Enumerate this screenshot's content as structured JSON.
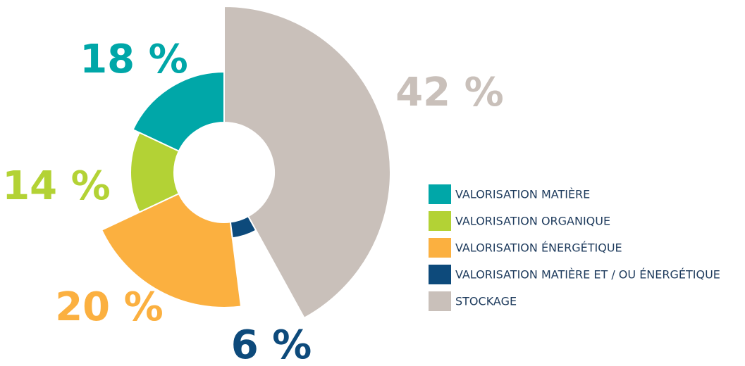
{
  "chart_data": {
    "type": "pie",
    "categories": [
      "VALORISATION MATIÈRE",
      "VALORISATION ORGANIQUE",
      "VALORISATION ÉNERGÉTIQUE",
      "VALORISATION MATIÈRE ET / OU ÉNERGÉTIQUE",
      "STOCKAGE"
    ],
    "values": [
      18,
      14,
      20,
      6,
      42
    ],
    "value_labels": [
      "18 %",
      "14 %",
      "20 %",
      "6 %",
      "42 %"
    ],
    "colors": [
      "#00a7a8",
      "#b3d235",
      "#fbb040",
      "#0d4a7b",
      "#c9c0ba"
    ]
  }
}
